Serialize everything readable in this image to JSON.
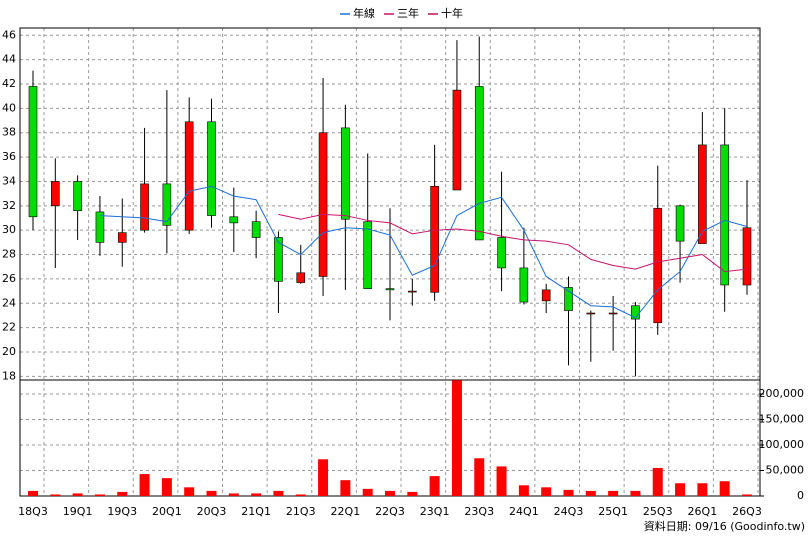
{
  "chart_data": {
    "type": "candlestick",
    "categories": [
      "18Q3",
      null,
      "19Q1",
      null,
      "19Q3",
      null,
      "20Q1",
      null,
      "20Q3",
      null,
      "21Q1",
      null,
      "21Q3",
      null,
      "22Q1",
      null,
      "22Q3",
      null,
      "23Q1",
      null,
      "23Q3",
      null,
      "24Q1",
      null,
      "24Q3",
      null,
      "25Q1",
      null,
      "25Q3",
      null,
      "26Q1",
      null,
      "26Q3"
    ],
    "open": [
      41.8,
      32,
      34,
      31.5,
      29,
      30,
      33.8,
      30,
      38.9,
      31.1,
      30.7,
      29.4,
      25.7,
      26.2,
      38.4,
      30.7,
      25.2,
      25,
      24.9,
      33.3,
      41.8,
      29.4,
      26.9,
      24.2,
      25.3,
      23.2,
      23.2,
      23.8,
      22.4,
      32,
      28.9,
      37,
      25.5
    ],
    "high": [
      43.1,
      35.9,
      34.5,
      32.8,
      32.6,
      38.4,
      41.5,
      40.9,
      40.8,
      33.5,
      31.6,
      29.9,
      28.8,
      42.5,
      40.3,
      36.3,
      31.8,
      26,
      37,
      45.6,
      45.9,
      34.8,
      30.2,
      25.6,
      26.2,
      23.4,
      24.6,
      24.1,
      35.3,
      32.1,
      39.7,
      40,
      34.1
    ],
    "low": [
      30,
      26.9,
      29.2,
      27.9,
      27,
      29.8,
      28.1,
      29.7,
      30.2,
      28.2,
      27.7,
      23.2,
      25.6,
      24.6,
      25.1,
      25.2,
      22.6,
      23.8,
      24.2,
      33.3,
      29.2,
      25,
      23.9,
      23.2,
      18.9,
      19.2,
      20.1,
      18,
      21.4,
      25.7,
      28.9,
      23.3,
      24.7
    ],
    "close": [
      31.1,
      34,
      31.6,
      29,
      29.8,
      33.8,
      30.4,
      38.9,
      31.2,
      30.6,
      29.4,
      25.8,
      26.5,
      38,
      30.9,
      25.2,
      25.1,
      25,
      33.6,
      41.5,
      29.2,
      26.9,
      24.1,
      25.1,
      23.4,
      23.2,
      23.2,
      22.7,
      31.8,
      29.1,
      37,
      25.5,
      30.2
    ],
    "up_color": "#ff0000",
    "down_color": "#00dd00",
    "ylim": [
      17.7,
      46.6
    ],
    "yticks": [
      18,
      20,
      22,
      24,
      26,
      28,
      30,
      32,
      34,
      36,
      38,
      40,
      42,
      44,
      46
    ],
    "grid": true,
    "series": [
      {
        "name": "年線",
        "color": "#1a6fd6",
        "values": [
          null,
          null,
          null,
          31.2,
          31.1,
          31,
          30.7,
          33.2,
          33.6,
          32.8,
          32.5,
          29,
          28,
          29.8,
          30.2,
          30.1,
          29.6,
          26.3,
          27.1,
          31.2,
          32.2,
          32.7,
          30,
          26.2,
          25,
          23.8,
          23.7,
          22.8,
          25.1,
          26.6,
          29.9,
          30.8,
          30.3
        ]
      },
      {
        "name": "三年",
        "color": "#c8126a",
        "values": [
          null,
          null,
          null,
          null,
          null,
          null,
          null,
          null,
          null,
          null,
          null,
          31.3,
          30.9,
          31.3,
          31.2,
          30.8,
          30.6,
          29.7,
          30,
          30.1,
          29.9,
          29.5,
          29.2,
          29.1,
          28.8,
          27.6,
          27.1,
          26.8,
          27.4,
          27.7,
          28,
          26.6,
          26.8
        ]
      },
      {
        "name": "十年",
        "color": "#c0144c",
        "values": [
          null,
          null,
          null,
          null,
          null,
          null,
          null,
          null,
          null,
          null,
          null,
          null,
          null,
          null,
          null,
          null,
          null,
          null,
          null,
          null,
          null,
          null,
          null,
          null,
          null,
          null,
          null,
          null,
          null,
          null,
          null,
          null,
          null
        ]
      }
    ],
    "volume": {
      "color": "#ff0000",
      "values": [
        10000,
        3000,
        5000,
        3000,
        8000,
        43000,
        35000,
        17000,
        10000,
        5000,
        5000,
        10000,
        3000,
        72000,
        31000,
        14000,
        10000,
        8000,
        39000,
        227000,
        74000,
        58000,
        21000,
        17000,
        12000,
        10000,
        10000,
        10000,
        55000,
        25000,
        25000,
        29000,
        3000
      ],
      "ylim": [
        0,
        227500
      ],
      "yticks": [
        0,
        {
          "value": 50000,
          "label": "50,000"
        },
        {
          "value": 100000,
          "label": "100,000"
        },
        {
          "value": 150000,
          "label": "150,000"
        },
        {
          "value": 200000,
          "label": "200,000"
        }
      ]
    },
    "source": "資料日期: 09/16 (Goodinfo.tw)"
  }
}
